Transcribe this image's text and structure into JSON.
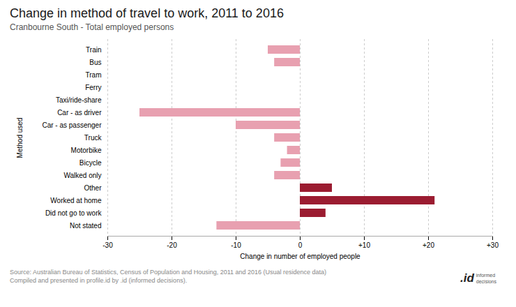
{
  "chart_data": {
    "type": "bar",
    "orientation": "horizontal",
    "title": "Change in method of travel to work, 2011 to 2016",
    "subtitle": "Cranbourne South - Total employed persons",
    "xlabel": "Change in number of employed people",
    "ylabel": "Method used",
    "categories": [
      "Train",
      "Bus",
      "Tram",
      "Ferry",
      "Taxi/ride-share",
      "Car - as driver",
      "Car - as passenger",
      "Truck",
      "Motorbike",
      "Bicycle",
      "Walked only",
      "Other",
      "Worked at home",
      "Did not go to work",
      "Not stated"
    ],
    "values": [
      -5,
      -4,
      0,
      0,
      0,
      -25,
      -10,
      -4,
      -2,
      -3,
      -4,
      5,
      21,
      4,
      -13
    ],
    "colors": [
      "#e8a0b0",
      "#e8a0b0",
      "#e8a0b0",
      "#e8a0b0",
      "#e8a0b0",
      "#e8a0b0",
      "#e8a0b0",
      "#e8a0b0",
      "#e8a0b0",
      "#e8a0b0",
      "#e8a0b0",
      "#9b1c31",
      "#9b1c31",
      "#9b1c31",
      "#e8a0b0"
    ],
    "xlim": [
      -30,
      30
    ],
    "xticks": [
      -30,
      -20,
      -10,
      0,
      {
        "value": 10,
        "label": "+10"
      },
      {
        "value": 20,
        "label": "+20"
      },
      {
        "value": 30,
        "label": "+30"
      }
    ],
    "grid": true,
    "source": "Source: Australian Bureau of Statistics, Census of Population and Housing, 2011 and 2016 (Usual residence data)\nCompiled and presented in profile.id by .id (informed decisions).",
    "annotations": [
      ".id",
      "informed\ndecisions"
    ]
  }
}
